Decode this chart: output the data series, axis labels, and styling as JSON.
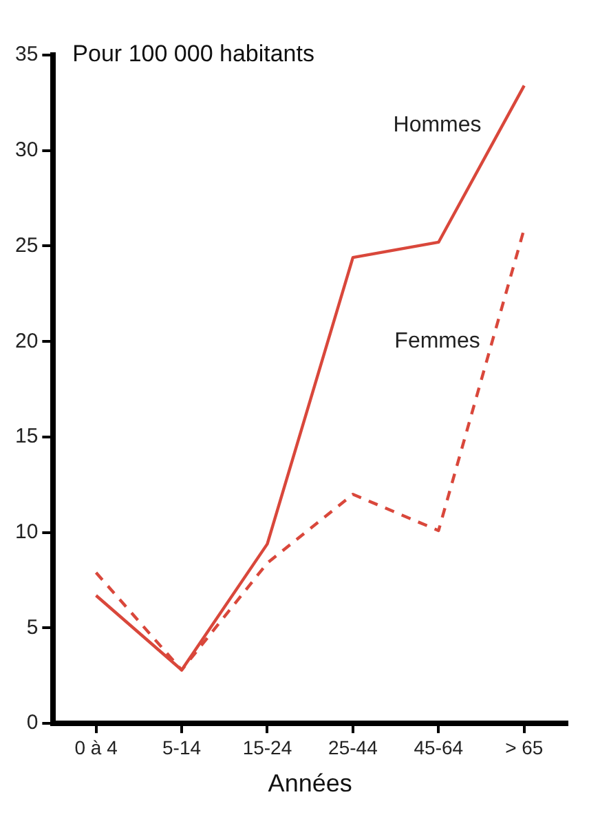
{
  "chart_data": {
    "type": "line",
    "ylabel": "Pour 100 000 habitants",
    "xlabel": "Années",
    "categories": [
      "0 à 4",
      "5-14",
      "15-24",
      "25-44",
      "45-64",
      "> 65"
    ],
    "series": [
      {
        "name": "Hommes",
        "color": "#d9473b",
        "values": [
          6.7,
          2.8,
          9.4,
          24.4,
          25.2,
          33.4
        ],
        "line_style": "solid"
      },
      {
        "name": "Femmes",
        "color": "#d9473b",
        "values": [
          7.9,
          2.8,
          8.4,
          12.0,
          10.1,
          25.9
        ],
        "line_style": "dashed"
      }
    ],
    "ylim": [
      0,
      35
    ],
    "yticks": [
      0,
      5,
      10,
      15,
      20,
      25,
      30,
      35
    ],
    "grid": false,
    "legend": false,
    "marker": "none"
  }
}
